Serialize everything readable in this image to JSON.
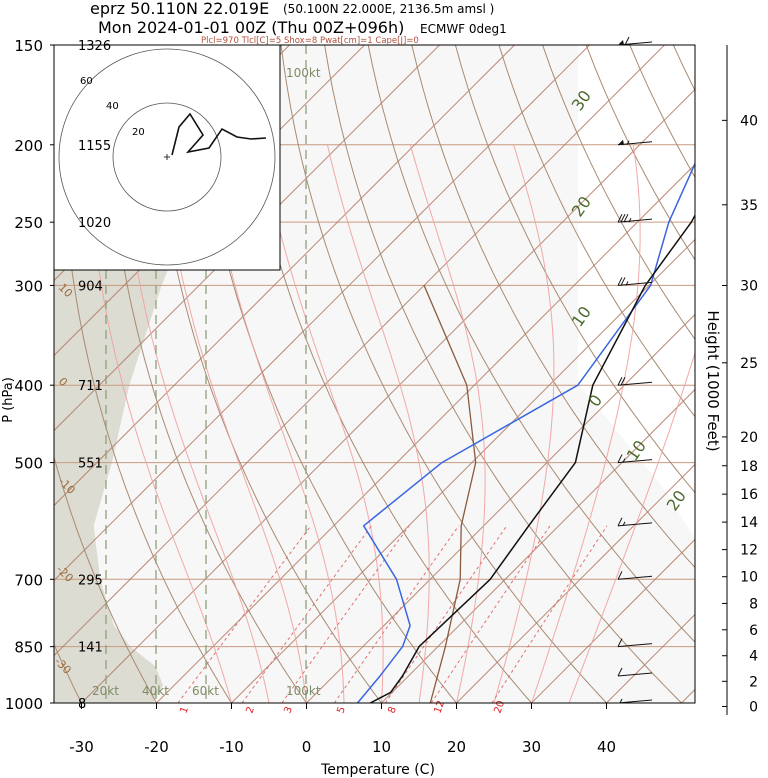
{
  "header": {
    "station_line": "eprz 50.110N 22.019E",
    "grid_point": "(50.100N 22.000E, 2136.5m amsl )",
    "run_line": "Mon 2024-01-01 00Z (Thu 00Z+096h)",
    "model": "ECMWF 0deg1",
    "indices": "Plcl=970 Tlcl[C]=5 Shox=8 Pwat[cm]=1 Cape[J]=0"
  },
  "chart_data": {
    "type": "skew-t",
    "xlabel": "Temperature (C)",
    "ylabel": "P (hPa)",
    "y2label": "Height (1000 Feet)",
    "xlim": [
      -34,
      47
    ],
    "ylim": [
      1000,
      150
    ],
    "x_ticks": [
      -30,
      -20,
      -10,
      0,
      10,
      20,
      30,
      40
    ],
    "p_levels": [
      {
        "p": 150,
        "label": "150",
        "z": "1326"
      },
      {
        "p": 200,
        "label": "200",
        "z": "1155"
      },
      {
        "p": 250,
        "label": "250",
        "z": "1020"
      },
      {
        "p": 300,
        "label": "300",
        "z": "904"
      },
      {
        "p": 400,
        "label": "400",
        "z": "711"
      },
      {
        "p": 500,
        "label": "500",
        "z": "551"
      },
      {
        "p": 700,
        "label": "700",
        "z": "295"
      },
      {
        "p": 850,
        "label": "850",
        "z": "141"
      },
      {
        "p": 1000,
        "label": "1000",
        "z": "8"
      }
    ],
    "height_ticks_kft": [
      0,
      2,
      4,
      6,
      8,
      10,
      12,
      14,
      16,
      18,
      20,
      25,
      30,
      35,
      40
    ],
    "temperature": [
      [
        1000,
        8.5
      ],
      [
        970,
        9.8
      ],
      [
        925,
        9.2
      ],
      [
        850,
        7.5
      ],
      [
        700,
        8.0
      ],
      [
        600,
        6.0
      ],
      [
        500,
        3.8
      ],
      [
        400,
        -4.2
      ],
      [
        300,
        -10.5
      ],
      [
        250,
        -12.8
      ],
      [
        200,
        -17.5
      ],
      [
        170,
        -21
      ],
      [
        150,
        -25
      ]
    ],
    "dewpoint": [
      [
        1000,
        6.8
      ],
      [
        925,
        6.2
      ],
      [
        850,
        5.3
      ],
      [
        800,
        3.5
      ],
      [
        700,
        -4.5
      ],
      [
        600,
        -16.0
      ],
      [
        500,
        -14.0
      ],
      [
        400,
        -6.2
      ],
      [
        300,
        -9.8
      ],
      [
        250,
        -15.8
      ],
      [
        200,
        -21.5
      ],
      [
        150,
        -26
      ]
    ],
    "parcel": [
      [
        1000,
        16.5
      ],
      [
        850,
        11.0
      ],
      [
        700,
        4.0
      ],
      [
        600,
        -3
      ],
      [
        500,
        -9.5
      ],
      [
        400,
        -21
      ],
      [
        300,
        -40
      ]
    ],
    "wind_kt": [
      {
        "p": 150,
        "spd": 60
      },
      {
        "p": 200,
        "spd": 55
      },
      {
        "p": 250,
        "spd": 35
      },
      {
        "p": 300,
        "spd": 25
      },
      {
        "p": 400,
        "spd": 20
      },
      {
        "p": 500,
        "spd": 15
      },
      {
        "p": 600,
        "spd": 15
      },
      {
        "p": 700,
        "spd": 10
      },
      {
        "p": 850,
        "spd": 10
      },
      {
        "p": 925,
        "spd": 10
      },
      {
        "p": 1000,
        "spd": 5
      }
    ],
    "mixing_ratio_labels": [
      "1",
      "2",
      "3",
      "5",
      "8",
      "12",
      "20"
    ],
    "wind_scale_labels": [
      "20kt",
      "40kt",
      "60kt",
      "100kt"
    ],
    "dry_adiabat_labels": [
      "10",
      "0",
      "-10",
      "-20",
      "-30"
    ],
    "moist_adiabat_labels": [
      "30",
      "20",
      "10",
      "0",
      "10",
      "20"
    ],
    "hodograph_ring_labels": [
      "20",
      "40",
      "60"
    ],
    "hodograph_trace_uv_kt": [
      [
        3,
        3
      ],
      [
        0,
        12
      ],
      [
        8,
        16
      ],
      [
        10,
        22
      ],
      [
        6,
        26
      ],
      [
        12,
        24
      ],
      [
        20,
        22
      ],
      [
        30,
        21
      ],
      [
        40,
        20
      ],
      [
        55,
        20
      ]
    ]
  },
  "colors": {
    "temperature": "#111111",
    "dewpoint": "#3a66e0",
    "parcel": "#8a5a3c",
    "isotherm": "#b07a62",
    "dry_adiabat": "#a88b72",
    "moist_adiabat": "#f0a0a0",
    "mixing_ratio": "#e07070",
    "shade": "#dcdcd3",
    "plot_bg": "#f7f7f7",
    "wind_guides": "#8fa07a",
    "moist_label": "#4a6a2a"
  }
}
